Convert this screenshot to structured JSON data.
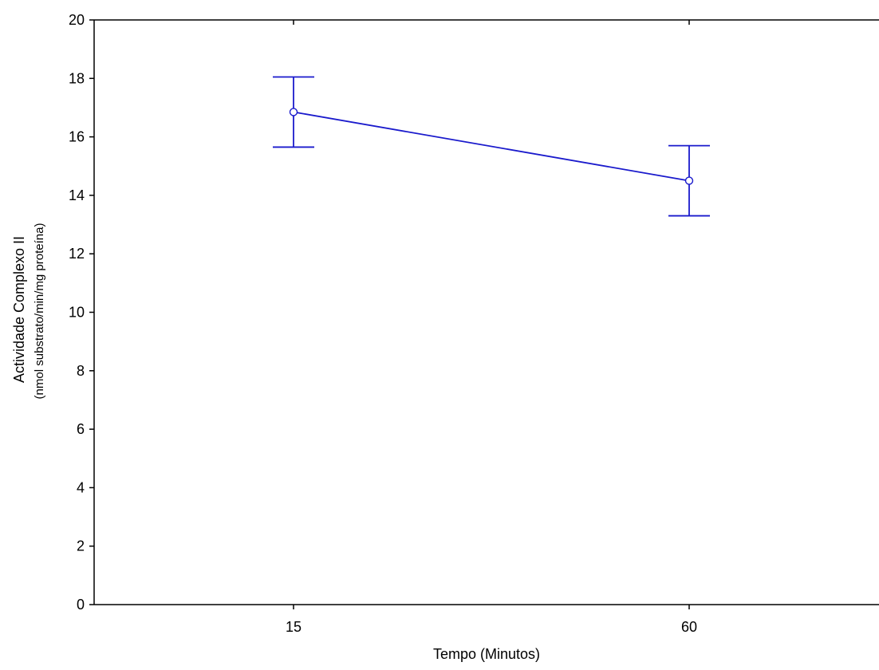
{
  "chart_data": {
    "type": "line",
    "categories": [
      "15",
      "60"
    ],
    "series": [
      {
        "values": [
          16.85,
          14.5
        ],
        "error_low": [
          15.65,
          13.3
        ],
        "error_high": [
          18.05,
          15.7
        ]
      }
    ],
    "xlabel": "Tempo (Minutos)",
    "ylabel": "Actividade Complexo II",
    "ylabel_sub": "(nmol substrato/min/mg proteína)",
    "ylim": [
      0,
      20
    ],
    "yticks": [
      "0",
      "2",
      "4",
      "6",
      "8",
      "10",
      "12",
      "14",
      "16",
      "18",
      "20"
    ],
    "grid": false,
    "legend": "none",
    "colors": {
      "series": "#1a1acc",
      "axis": "#000000",
      "marker_fill": "#ffffff"
    }
  }
}
